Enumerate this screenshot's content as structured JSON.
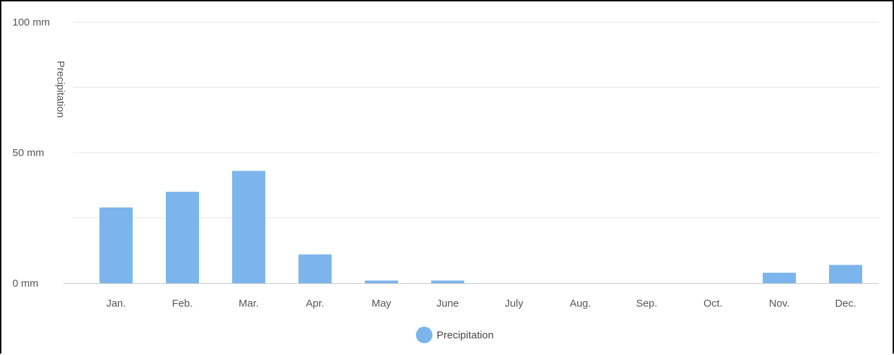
{
  "chart_data": {
    "type": "bar",
    "categories": [
      "Jan.",
      "Feb.",
      "Mar.",
      "Apr.",
      "May",
      "June",
      "July",
      "Aug.",
      "Sep.",
      "Oct.",
      "Nov.",
      "Dec."
    ],
    "series": [
      {
        "name": "Precipitation",
        "values": [
          29,
          35,
          43,
          11,
          1,
          1,
          0,
          0,
          0,
          0,
          4,
          7
        ],
        "color": "#7cb5ec"
      }
    ],
    "ylabel": "Precipitation",
    "yticks": [
      "0 mm",
      "50 mm",
      "100 mm"
    ],
    "ylim": [
      0,
      100
    ],
    "grid": true,
    "legend": "bottom-center"
  }
}
